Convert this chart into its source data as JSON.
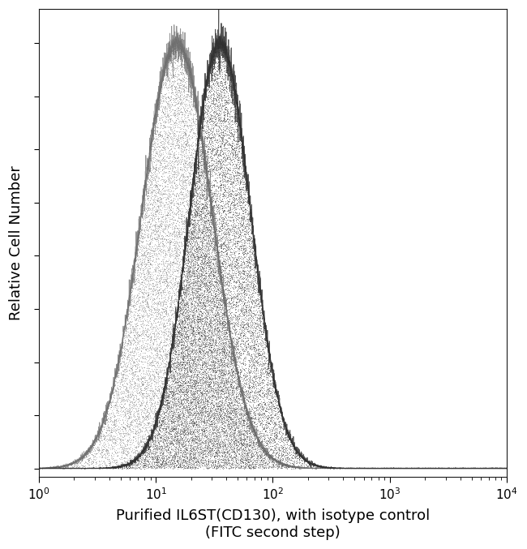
{
  "xlabel": "Purified IL6ST(CD130), with isotype control\n(FITC second step)",
  "ylabel": "Relative Cell Number",
  "background_color": "#ffffff",
  "plot_bg_color": "#f8f8f8",
  "line_color_main": "#2a2a2a",
  "line_color_isotype": "#666666",
  "xlabel_fontsize": 13,
  "ylabel_fontsize": 13,
  "tick_fontsize": 11,
  "iso_peak_log": 1.18,
  "iso_sigma_log": 0.3,
  "main_peak_log": 1.55,
  "main_sigma_log": 0.26
}
